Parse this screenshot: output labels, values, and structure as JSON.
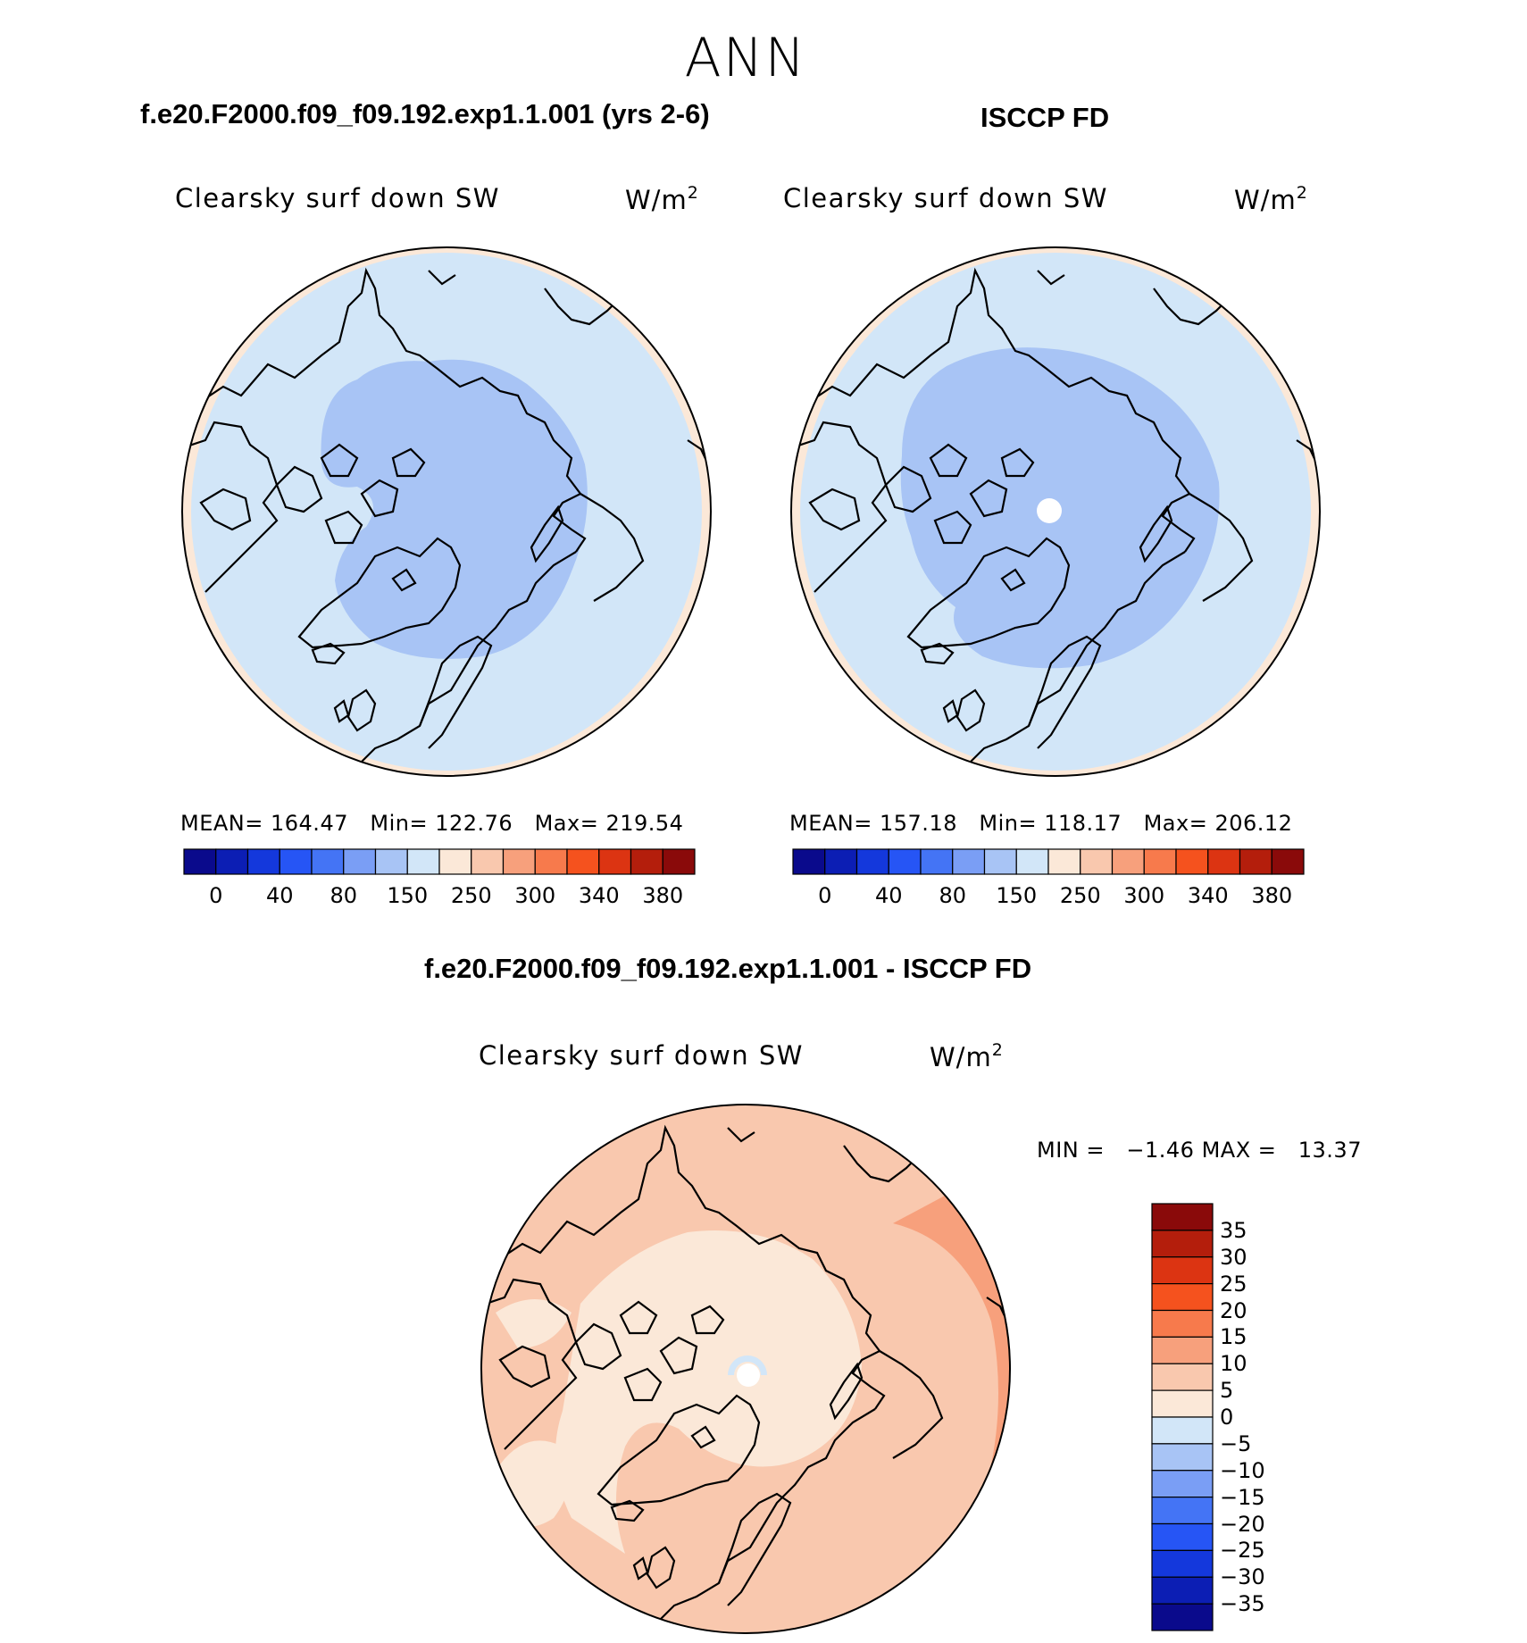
{
  "figure": {
    "title": "ANN",
    "colors": {
      "land_outline": "#000000",
      "circle_outline": "#000000"
    }
  },
  "panels": {
    "model": {
      "case_title": "f.e20.F2000.f09_f09.192.exp1.1.001 (yrs 2-6)",
      "variable": "Clearsky surf down SW",
      "units": "W/m",
      "units_exp": "2",
      "stats": {
        "mean_label": "MEAN=",
        "mean": "164.47",
        "min_label": "Min=",
        "min": "122.76",
        "max_label": "Max=",
        "max": "219.54"
      }
    },
    "obs": {
      "case_title": "ISCCP FD",
      "variable": "Clearsky surf down SW",
      "units": "W/m",
      "units_exp": "2",
      "stats": {
        "mean_label": "MEAN=",
        "mean": "157.18",
        "min_label": "Min=",
        "min": "118.17",
        "max_label": "Max=",
        "max": "206.12"
      }
    },
    "diff": {
      "case_title": "f.e20.F2000.f09_f09.192.exp1.1.001 - ISCCP FD",
      "variable": "Clearsky surf down SW",
      "units": "W/m",
      "units_exp": "2",
      "stats": {
        "min_label": "MIN =",
        "min": "−1.46",
        "max_label": "MAX =",
        "max": "13.37"
      }
    }
  },
  "colorbars": {
    "absolute": {
      "colors": [
        "#0a0a8c",
        "#0c1eb4",
        "#1438dc",
        "#2655f5",
        "#4474f5",
        "#7a9ef5",
        "#a8c4f5",
        "#d2e6f8",
        "#fbe8d8",
        "#f9c8ae",
        "#f7a07c",
        "#f77a4c",
        "#f5521e",
        "#dc3412",
        "#b41e0c",
        "#8a0a0a"
      ],
      "tick_labels": [
        "0",
        "40",
        "80",
        "150",
        "250",
        "300",
        "340",
        "380"
      ]
    },
    "difference": {
      "colors": [
        "#0a0a8c",
        "#0c1eb4",
        "#1438dc",
        "#2655f5",
        "#4474f5",
        "#7a9ef5",
        "#a8c4f5",
        "#d2e6f8",
        "#fbe8d8",
        "#f9c8ae",
        "#f7a07c",
        "#f77a4c",
        "#f5521e",
        "#dc3412",
        "#b41e0c",
        "#8a0a0a"
      ],
      "tick_labels": [
        "35",
        "30",
        "25",
        "20",
        "15",
        "10",
        "5",
        "0",
        "−5",
        "−10",
        "−15",
        "−20",
        "−25",
        "−30",
        "−35"
      ]
    }
  },
  "map_fills": {
    "outer_band": "#fbe8d8",
    "ocean_mid": "#d2e6f8",
    "arctic_core": "#a8c4f5",
    "diff_base": "#f9c8ae",
    "diff_low": "#fbe8d8",
    "diff_high": "#f7a07c",
    "diff_neg": "#d2e6f8"
  }
}
